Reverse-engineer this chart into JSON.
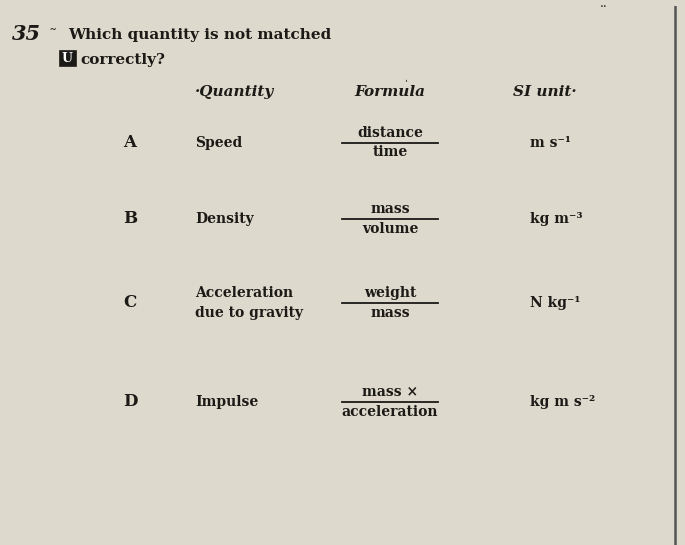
{
  "title_line1": "Which quantity is not matched",
  "title_line2": "correctly?",
  "question_num": "35",
  "answer_label": "U",
  "col_headers": [
    "·Quantity",
    "Formula",
    "SI unit·"
  ],
  "rows": [
    {
      "letter": "A",
      "quantity": "Speed",
      "formula_num": "distance",
      "formula_den": "time",
      "unit": "m s⁻¹"
    },
    {
      "letter": "B",
      "quantity": "Density",
      "formula_num": "mass",
      "formula_den": "volume",
      "unit": "kg m⁻³"
    },
    {
      "letter": "C",
      "quantity_line1": "Acceleration",
      "quantity_line2": "due to gravity",
      "formula_num": "weight",
      "formula_den": "mass",
      "unit": "N kg⁻¹"
    },
    {
      "letter": "D",
      "quantity": "Impulse",
      "formula_num": "mass ×",
      "formula_den": "acceleration",
      "unit": "kg m s⁻²"
    }
  ],
  "bg_color": "#ddd9cc",
  "text_color": "#1c1a17",
  "font_size_header": 11,
  "font_size_body": 10,
  "font_size_question": 11,
  "font_size_letter": 12
}
